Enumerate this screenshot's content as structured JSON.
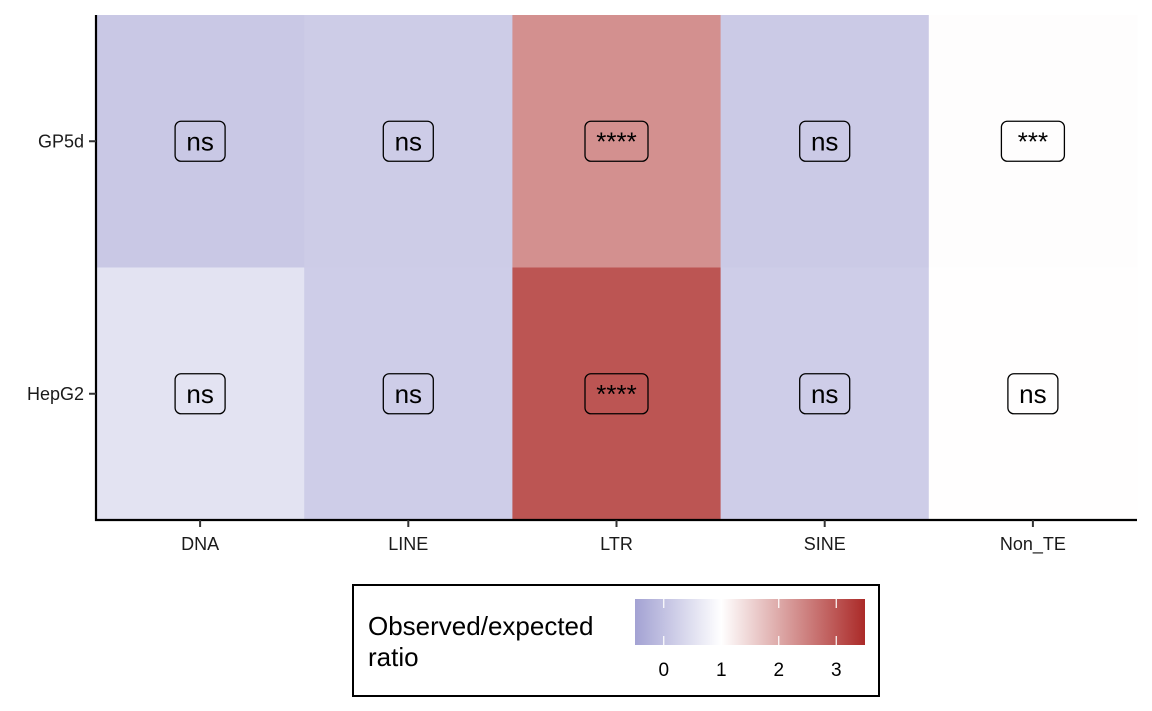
{
  "chart_data": {
    "type": "heatmap",
    "x_categories": [
      "DNA",
      "LINE",
      "LTR",
      "SINE",
      "Non_TE"
    ],
    "y_categories": [
      "GP5d",
      "HepG2"
    ],
    "cells": [
      {
        "x": "DNA",
        "y": "GP5d",
        "value": 0.12,
        "label": "ns"
      },
      {
        "x": "LINE",
        "y": "GP5d",
        "value": 0.18,
        "label": "ns"
      },
      {
        "x": "LTR",
        "y": "GP5d",
        "value": 2.3,
        "label": "****"
      },
      {
        "x": "SINE",
        "y": "GP5d",
        "value": 0.15,
        "label": "ns"
      },
      {
        "x": "Non_TE",
        "y": "GP5d",
        "value": 1.02,
        "label": "***"
      },
      {
        "x": "DNA",
        "y": "HepG2",
        "value": 0.55,
        "label": "ns"
      },
      {
        "x": "LINE",
        "y": "HepG2",
        "value": 0.2,
        "label": "ns"
      },
      {
        "x": "LTR",
        "y": "HepG2",
        "value": 3.0,
        "label": "****"
      },
      {
        "x": "SINE",
        "y": "HepG2",
        "value": 0.2,
        "label": "ns"
      },
      {
        "x": "Non_TE",
        "y": "HepG2",
        "value": 1.01,
        "label": "ns"
      }
    ],
    "legend": {
      "title_lines": [
        "Observed/expected",
        "ratio"
      ],
      "ticks": [
        0,
        1,
        2,
        3
      ],
      "range": [
        -0.5,
        3.5
      ],
      "midpoint": 1,
      "low_color": "#a3a2d3",
      "mid_color": "#ffffff",
      "high_color": "#ab2a28",
      "placement": "bottom"
    },
    "grid": false
  }
}
